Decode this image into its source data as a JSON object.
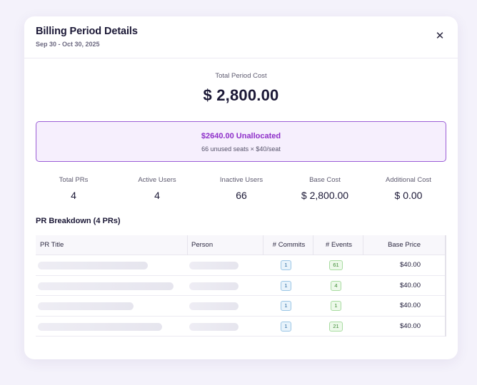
{
  "modal": {
    "title": "Billing Period Details",
    "period": "Sep 30 - Oct 30, 2025",
    "close_icon": "close-icon"
  },
  "total": {
    "label": "Total Period Cost",
    "value": "$ 2,800.00"
  },
  "allocation": {
    "amount": "$2640.00 Unallocated",
    "detail": "66 unused seats × $40/seat",
    "accent": "#8e2fc9"
  },
  "stats": [
    {
      "label": "Total PRs",
      "value": "4"
    },
    {
      "label": "Active Users",
      "value": "4"
    },
    {
      "label": "Inactive Users",
      "value": "66"
    },
    {
      "label": "Base Cost",
      "value": "$ 2,800.00"
    },
    {
      "label": "Additional Cost",
      "value": "$ 0.00"
    }
  ],
  "breakdown": {
    "title": "PR Breakdown (4 PRs)",
    "columns": [
      "PR Title",
      "Person",
      "# Commits",
      "# Events",
      "Base Price"
    ],
    "rows": [
      {
        "commits": "1",
        "events": "61",
        "price": "$40.00"
      },
      {
        "commits": "1",
        "events": "4",
        "price": "$40.00"
      },
      {
        "commits": "1",
        "events": "1",
        "price": "$40.00"
      },
      {
        "commits": "1",
        "events": "21",
        "price": "$40.00"
      }
    ]
  }
}
